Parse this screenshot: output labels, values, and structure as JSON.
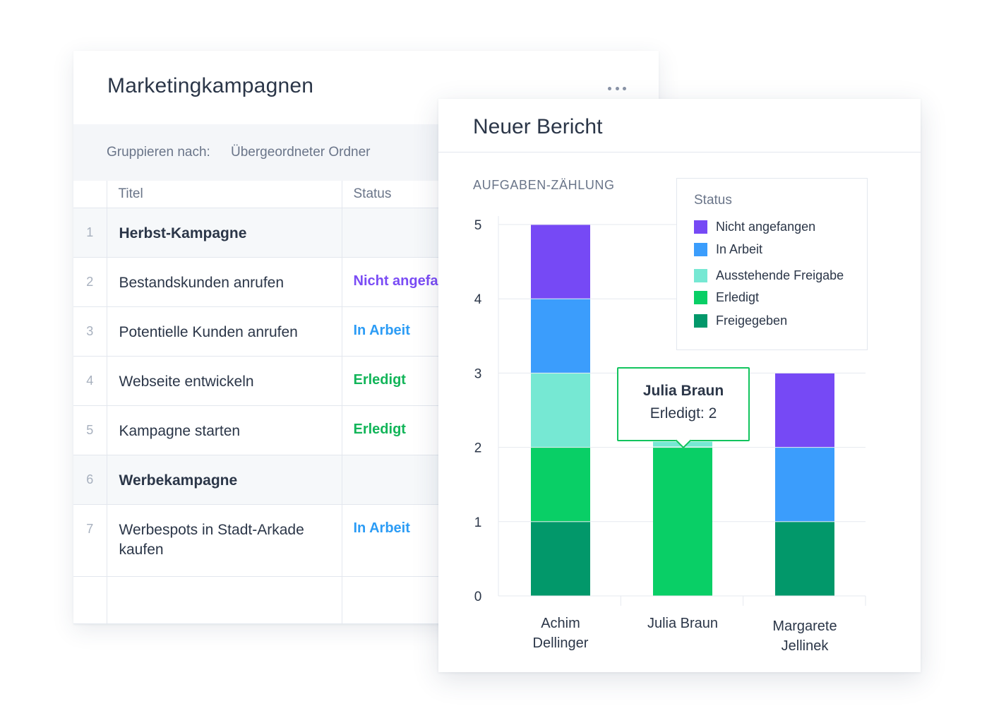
{
  "table": {
    "title": "Marketingkampagnen",
    "group_label": "Gruppieren nach:",
    "group_value": "Übergeordneter Ordner",
    "columns": [
      "Titel",
      "Status"
    ],
    "rows": [
      {
        "num": "1",
        "title": "Herbst-Kampagne",
        "status": "",
        "group": true
      },
      {
        "num": "2",
        "title": "Bestandskunden anrufen",
        "status": "Nicht angefangen",
        "status_class": "st-nicht"
      },
      {
        "num": "3",
        "title": "Potentielle Kunden anrufen",
        "status": "In Arbeit",
        "status_class": "st-arbeit"
      },
      {
        "num": "4",
        "title": "Webseite entwickeln",
        "status": "Erledigt",
        "status_class": "st-erledigt"
      },
      {
        "num": "5",
        "title": "Kampagne starten",
        "status": "Erledigt",
        "status_class": "st-erledigt"
      },
      {
        "num": "6",
        "title": "Werbekampagne",
        "status": "",
        "group": true
      },
      {
        "num": "7",
        "title": "Werbespots in Stadt-Arkade kaufen",
        "status": "In Arbeit",
        "status_class": "st-arbeit"
      }
    ]
  },
  "report": {
    "title": "Neuer Bericht",
    "subtitle": "AUFGABEN-ZÄHLUNG",
    "tooltip": {
      "name": "Julia Braun",
      "value": "Erledigt: 2"
    }
  },
  "colors": {
    "Nicht angefangen": "#7649f5",
    "In Arbeit": "#3b9dfc",
    "Ausstehende Freigabe": "#76e8d3",
    "Erledigt": "#09cf66",
    "Freigegeben": "#02986a"
  },
  "chart_data": {
    "type": "bar",
    "stacked": true,
    "categories": [
      "Achim Dellinger",
      "Julia Braun",
      "Margarete Jellinek"
    ],
    "category_labels": [
      [
        "Achim",
        "Dellinger"
      ],
      [
        "Julia Braun"
      ],
      [
        "Margarete",
        "Jellinek"
      ]
    ],
    "series": [
      {
        "name": "Freigegeben",
        "values": [
          1,
          0,
          1
        ]
      },
      {
        "name": "Erledigt",
        "values": [
          1,
          2,
          0
        ]
      },
      {
        "name": "Ausstehende Freigabe",
        "values": [
          1,
          0,
          0
        ]
      },
      {
        "name": "In Arbeit",
        "values": [
          1,
          0,
          1
        ]
      },
      {
        "name": "Nicht angefangen",
        "values": [
          1,
          0,
          1
        ]
      }
    ],
    "legend_title": "Status",
    "legend_order": [
      "Nicht angefangen",
      "In Arbeit",
      "Ausstehende Freigabe",
      "Erledigt",
      "Freigegeben"
    ],
    "ylim": [
      0,
      5
    ],
    "yticks": [
      0,
      1,
      2,
      3,
      4,
      5
    ],
    "grid": true,
    "legend_position": "top-right"
  }
}
